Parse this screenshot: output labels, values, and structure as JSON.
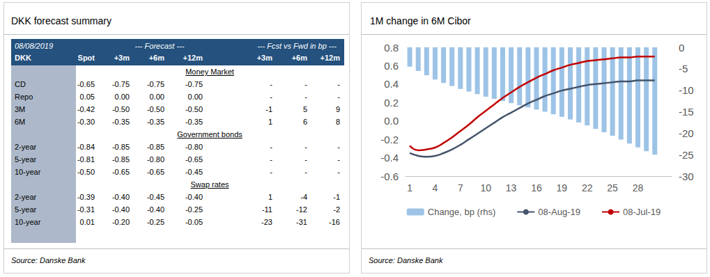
{
  "table_panel": {
    "title": "DKK forecast summary",
    "header": {
      "date": "08/08/2019",
      "forecast": "--- Forecast ---",
      "fcst_vs_fwd": "--- Fcst vs Fwd in bp ---",
      "columns": [
        "DKK",
        "Spot",
        "+3m",
        "+6m",
        "+12m",
        "+3m",
        "+6m",
        "+12m"
      ]
    },
    "sections": [
      {
        "title": "Money Market",
        "rows": [
          [
            "CD",
            "-0.65",
            "-0.75",
            "-0.75",
            "-0.75",
            "-",
            "-",
            "-"
          ],
          [
            "Repo",
            "0.05",
            "0.00",
            "0.00",
            "0.00",
            "-",
            "-",
            "-"
          ],
          [
            "3M",
            "-0.42",
            "-0.50",
            "-0.50",
            "-0.50",
            "-1",
            "5",
            "9"
          ],
          [
            "6M",
            "-0.30",
            "-0.35",
            "-0.35",
            "-0.35",
            "1",
            "6",
            "8"
          ]
        ]
      },
      {
        "title": "Government bonds",
        "rows": [
          [
            "2-year",
            "-0.84",
            "-0.85",
            "-0.85",
            "-0.80",
            "-",
            "-",
            "-"
          ],
          [
            "5-year",
            "-0.81",
            "-0.85",
            "-0.80",
            "-0.65",
            "-",
            "-",
            "-"
          ],
          [
            "10-year",
            "-0.50",
            "-0.65",
            "-0.65",
            "-0.45",
            "-",
            "-",
            "-"
          ]
        ]
      },
      {
        "title": "Swap rates",
        "rows": [
          [
            "2-year",
            "-0.39",
            "-0.40",
            "-0.45",
            "-0.40",
            "1",
            "-4",
            "-1"
          ],
          [
            "5-year",
            "-0.31",
            "-0.40",
            "-0.40",
            "-0.25",
            "-11",
            "-12",
            "-2"
          ],
          [
            "10-year",
            "0.01",
            "-0.20",
            "-0.25",
            "-0.05",
            "-23",
            "-31",
            "-16"
          ]
        ]
      }
    ],
    "source": "Source: Danske Bank"
  },
  "chart_data": {
    "type": "line",
    "title": "1M change in 6M Cibor",
    "source": "Source: Danske Bank",
    "x": [
      1,
      2,
      3,
      4,
      5,
      6,
      7,
      8,
      9,
      10,
      11,
      12,
      13,
      14,
      15,
      16,
      17,
      18,
      19,
      20,
      21,
      22,
      23,
      24,
      25,
      26,
      27,
      28,
      29,
      30
    ],
    "xlim": [
      0.5,
      32
    ],
    "xticks": [
      1,
      4,
      7,
      10,
      13,
      16,
      19,
      22,
      25,
      28
    ],
    "ylim": [
      -0.6,
      0.8
    ],
    "yticks": [
      -0.6,
      -0.4,
      -0.2,
      {
        "value": 0,
        "label": "0.0"
      },
      0.2,
      0.4,
      0.6,
      0.8
    ],
    "y2lim": [
      -30,
      0
    ],
    "y2ticks": [
      -30,
      -25,
      -20,
      -15,
      -10,
      -5,
      0
    ],
    "grid": false,
    "legend": "bottom",
    "series": [
      {
        "name": "Change, bp (rhs)",
        "type": "bar",
        "axis": "y2",
        "color": "#9dc3e6",
        "values": [
          -4.5,
          -5.5,
          -6.5,
          -7.5,
          -8.3,
          -9,
          -9.7,
          -10.3,
          -10.9,
          -11.5,
          -12,
          -12.5,
          -13,
          -13.5,
          -14,
          -14.5,
          -15,
          -15.6,
          -16.2,
          -16.8,
          -17.5,
          -18.2,
          -19,
          -19.8,
          -20.6,
          -21.5,
          -22.4,
          -23.3,
          -24.2,
          -25
        ]
      },
      {
        "name": "08-Aug-19",
        "type": "line",
        "color": "#44546a",
        "line_style": "solid",
        "values": [
          -0.35,
          -0.38,
          -0.39,
          -0.38,
          -0.35,
          -0.31,
          -0.26,
          -0.2,
          -0.14,
          -0.08,
          -0.02,
          0.04,
          0.09,
          0.14,
          0.19,
          0.23,
          0.27,
          0.3,
          0.33,
          0.35,
          0.37,
          0.39,
          0.4,
          0.41,
          0.42,
          0.43,
          0.43,
          0.44,
          0.44,
          0.44
        ]
      },
      {
        "name": "08-Jul-19",
        "type": "line",
        "color": "#c00000",
        "line_style": "solid",
        "values": [
          -0.27,
          -0.32,
          -0.31,
          -0.29,
          -0.24,
          -0.18,
          -0.11,
          -0.04,
          0.04,
          0.11,
          0.18,
          0.25,
          0.31,
          0.37,
          0.42,
          0.47,
          0.51,
          0.55,
          0.58,
          0.61,
          0.63,
          0.65,
          0.66,
          0.67,
          0.68,
          0.69,
          0.69,
          0.7,
          0.7,
          0.7
        ]
      }
    ]
  }
}
